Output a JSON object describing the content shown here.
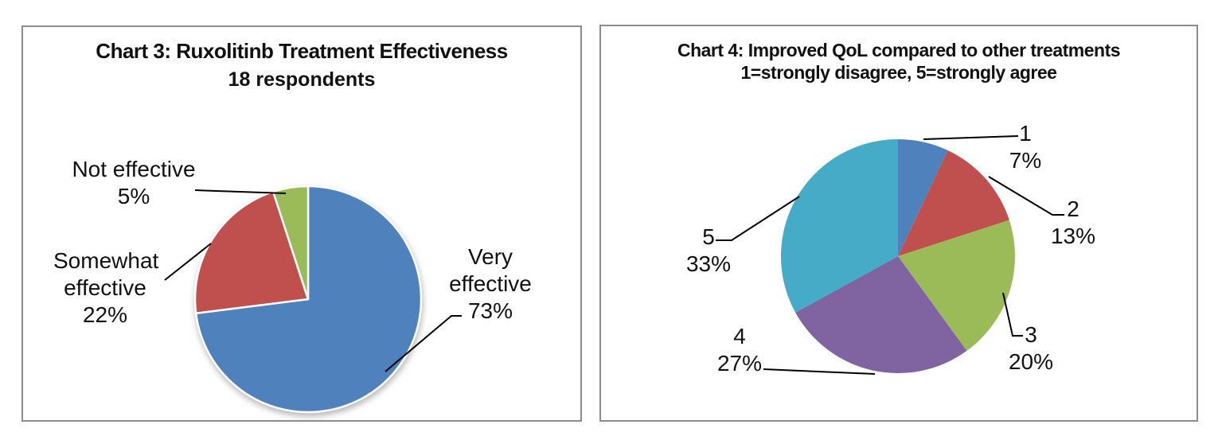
{
  "chart_data": [
    {
      "type": "pie",
      "title": "Chart 3: Ruxolitinb Treatment Effectiveness",
      "subtitle": "18 respondents",
      "categories": [
        "Very effective",
        "Somewhat effective",
        "Not effective"
      ],
      "values": [
        73,
        22,
        5
      ],
      "pct_labels": [
        "73%",
        "22%",
        "5%"
      ],
      "colors": [
        "#4F81BD",
        "#C0504D",
        "#9BBB59"
      ],
      "unit": "percent of respondents",
      "start_angle_deg": 0,
      "direction": "clockwise",
      "legend": "none",
      "data_label_style": "category name and percent outside slices with black leader lines",
      "slice_border_color": "#FFFFFF",
      "has_drop_shadow": true
    },
    {
      "type": "pie",
      "title": "Chart 4: Improved QoL compared to other treatments",
      "subtitle": "1=strongly disagree, 5=strongly agree",
      "categories": [
        "1",
        "2",
        "3",
        "4",
        "5"
      ],
      "values": [
        7,
        13,
        20,
        27,
        33
      ],
      "pct_labels": [
        "7%",
        "13%",
        "20%",
        "27%",
        "33%"
      ],
      "colors": [
        "#4F81BD",
        "#C0504D",
        "#9BBB59",
        "#8064A2",
        "#45ABC6"
      ],
      "unit": "percent of respondents",
      "start_angle_deg": 0,
      "direction": "clockwise",
      "legend": "none",
      "data_label_style": "rating number and percent outside slices with black leader lines",
      "slice_border_color": "none",
      "has_drop_shadow": false
    }
  ]
}
